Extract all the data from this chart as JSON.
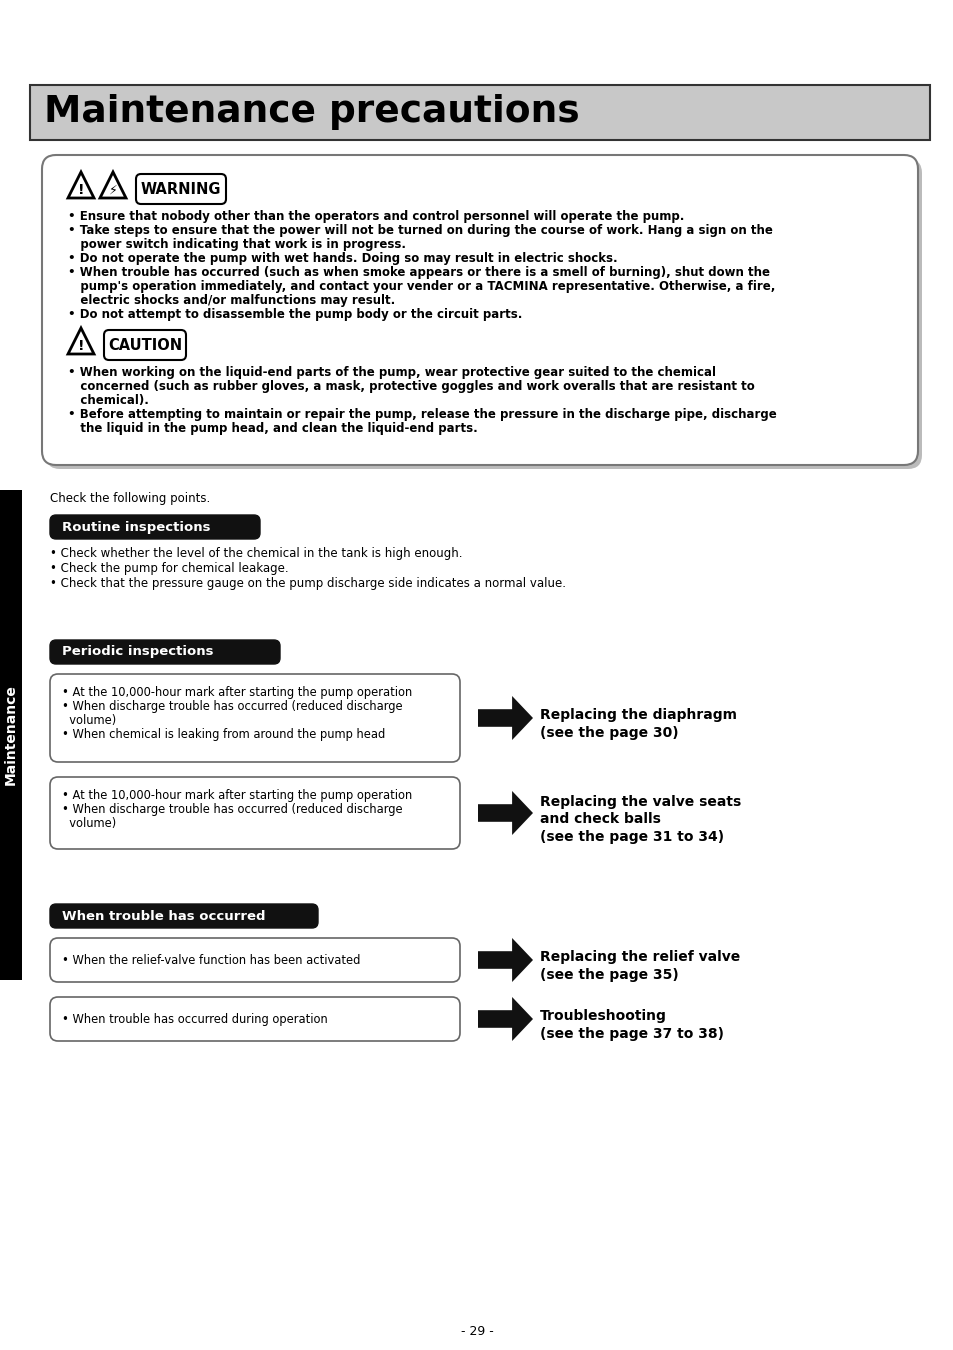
{
  "title": "Maintenance precautions",
  "page_bg": "#ffffff",
  "title_bg": "#c8c8c8",
  "title_color": "#000000",
  "sidebar_bg": "#000000",
  "sidebar_text": "Maintenance",
  "page_number": "- 29 -",
  "warning_texts": [
    "• Ensure that nobody other than the operators and control personnel will operate the pump.",
    "• Take steps to ensure that the power will not be turned on during the course of work. Hang a sign on the",
    "   power switch indicating that work is in progress.",
    "• Do not operate the pump with wet hands. Doing so may result in electric shocks.",
    "• When trouble has occurred (such as when smoke appears or there is a smell of burning), shut down the",
    "   pump's operation immediately, and contact your vender or a TACMINA representative. Otherwise, a fire,",
    "   electric shocks and/or malfunctions may result.",
    "• Do not attempt to disassemble the pump body or the circuit parts."
  ],
  "caution_texts": [
    "• When working on the liquid-end parts of the pump, wear protective gear suited to the chemical",
    "   concerned (such as rubber gloves, a mask, protective goggles and work overalls that are resistant to",
    "   chemical).",
    "• Before attempting to maintain or repair the pump, release the pressure in the discharge pipe, discharge",
    "   the liquid in the pump head, and clean the liquid-end parts."
  ],
  "check_text": "Check the following points.",
  "section1_title": "Routine inspections",
  "section1_bullets": [
    "• Check whether the level of the chemical in the tank is high enough.",
    "• Check the pump for chemical leakage.",
    "• Check that the pressure gauge on the pump discharge side indicates a normal value."
  ],
  "section2_title": "Periodic inspections",
  "box1_texts": [
    "• At the 10,000-hour mark after starting the pump operation",
    "• When discharge trouble has occurred (reduced discharge",
    "  volume)",
    "• When chemical is leaking from around the pump head"
  ],
  "box1_result_line1": "Replacing the diaphragm",
  "box1_result_line2": "(see the page 30)",
  "box2_texts": [
    "• At the 10,000-hour mark after starting the pump operation",
    "• When discharge trouble has occurred (reduced discharge",
    "  volume)"
  ],
  "box2_result_line1": "Replacing the valve seats",
  "box2_result_line2": "and check balls",
  "box2_result_line3": "(see the page 31 to 34)",
  "section3_title": "When trouble has occurred",
  "box3_text": "• When the relief-valve function has been activated",
  "box3_result_line1": "Replacing the relief valve",
  "box3_result_line2": "(see the page 35)",
  "box4_text": "• When trouble has occurred during operation",
  "box4_result_line1": "Troubleshooting",
  "box4_result_line2": "(see the page 37 to 38)"
}
